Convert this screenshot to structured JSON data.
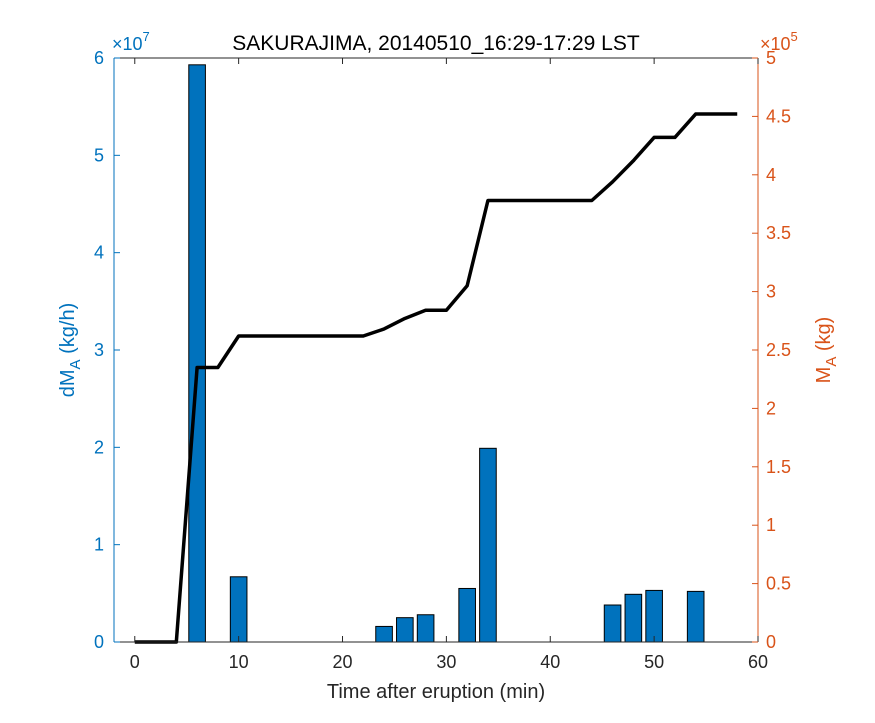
{
  "chart_data": {
    "type": "bar",
    "title": "SAKURAJIMA, 20140510_16:29-17:29 LST",
    "xlabel": "Time after eruption (min)",
    "xlim": [
      -2,
      60
    ],
    "xticks": [
      0,
      10,
      20,
      30,
      40,
      50,
      60
    ],
    "left_axis": {
      "label_main": "dM",
      "label_sub": "A",
      "label_unit": " (kg/h)",
      "exponent_base": "×10",
      "exponent_power": "7",
      "ylim": [
        0,
        6
      ],
      "ticks": [
        0,
        1,
        2,
        3,
        4,
        5,
        6
      ],
      "color": "#0072BD"
    },
    "right_axis": {
      "label_main": "M",
      "label_sub": "A",
      "label_unit": " (kg)",
      "exponent_base": "×10",
      "exponent_power": "5",
      "ylim": [
        0,
        5
      ],
      "ticks": [
        0,
        0.5,
        1,
        1.5,
        2,
        2.5,
        3,
        3.5,
        4,
        4.5,
        5
      ],
      "tick_labels": [
        "0",
        "0.5",
        "1",
        "1.5",
        "2",
        "2.5",
        "3",
        "3.5",
        "4",
        "4.5",
        "5"
      ],
      "color": "#D95319"
    },
    "bar_series": {
      "axis": "left",
      "color": "#0072BD",
      "bar_width": 1.6,
      "x": [
        6,
        10,
        24,
        26,
        28,
        32,
        34,
        46,
        48,
        50,
        54
      ],
      "values": [
        5.93,
        0.67,
        0.16,
        0.25,
        0.28,
        0.55,
        1.99,
        0.38,
        0.49,
        0.53,
        0.52
      ]
    },
    "line_series": {
      "axis": "right",
      "color": "#000000",
      "x": [
        0,
        2,
        4,
        6,
        8,
        10,
        12,
        14,
        16,
        18,
        20,
        22,
        24,
        26,
        28,
        30,
        32,
        34,
        36,
        38,
        40,
        42,
        44,
        46,
        48,
        50,
        52,
        54,
        56,
        58
      ],
      "values": [
        0,
        0,
        0,
        2.35,
        2.35,
        2.62,
        2.62,
        2.62,
        2.62,
        2.62,
        2.62,
        2.62,
        2.68,
        2.77,
        2.84,
        2.84,
        3.05,
        3.78,
        3.78,
        3.78,
        3.78,
        3.78,
        3.78,
        3.94,
        4.12,
        4.32,
        4.32,
        4.52,
        4.52,
        4.52
      ]
    }
  }
}
